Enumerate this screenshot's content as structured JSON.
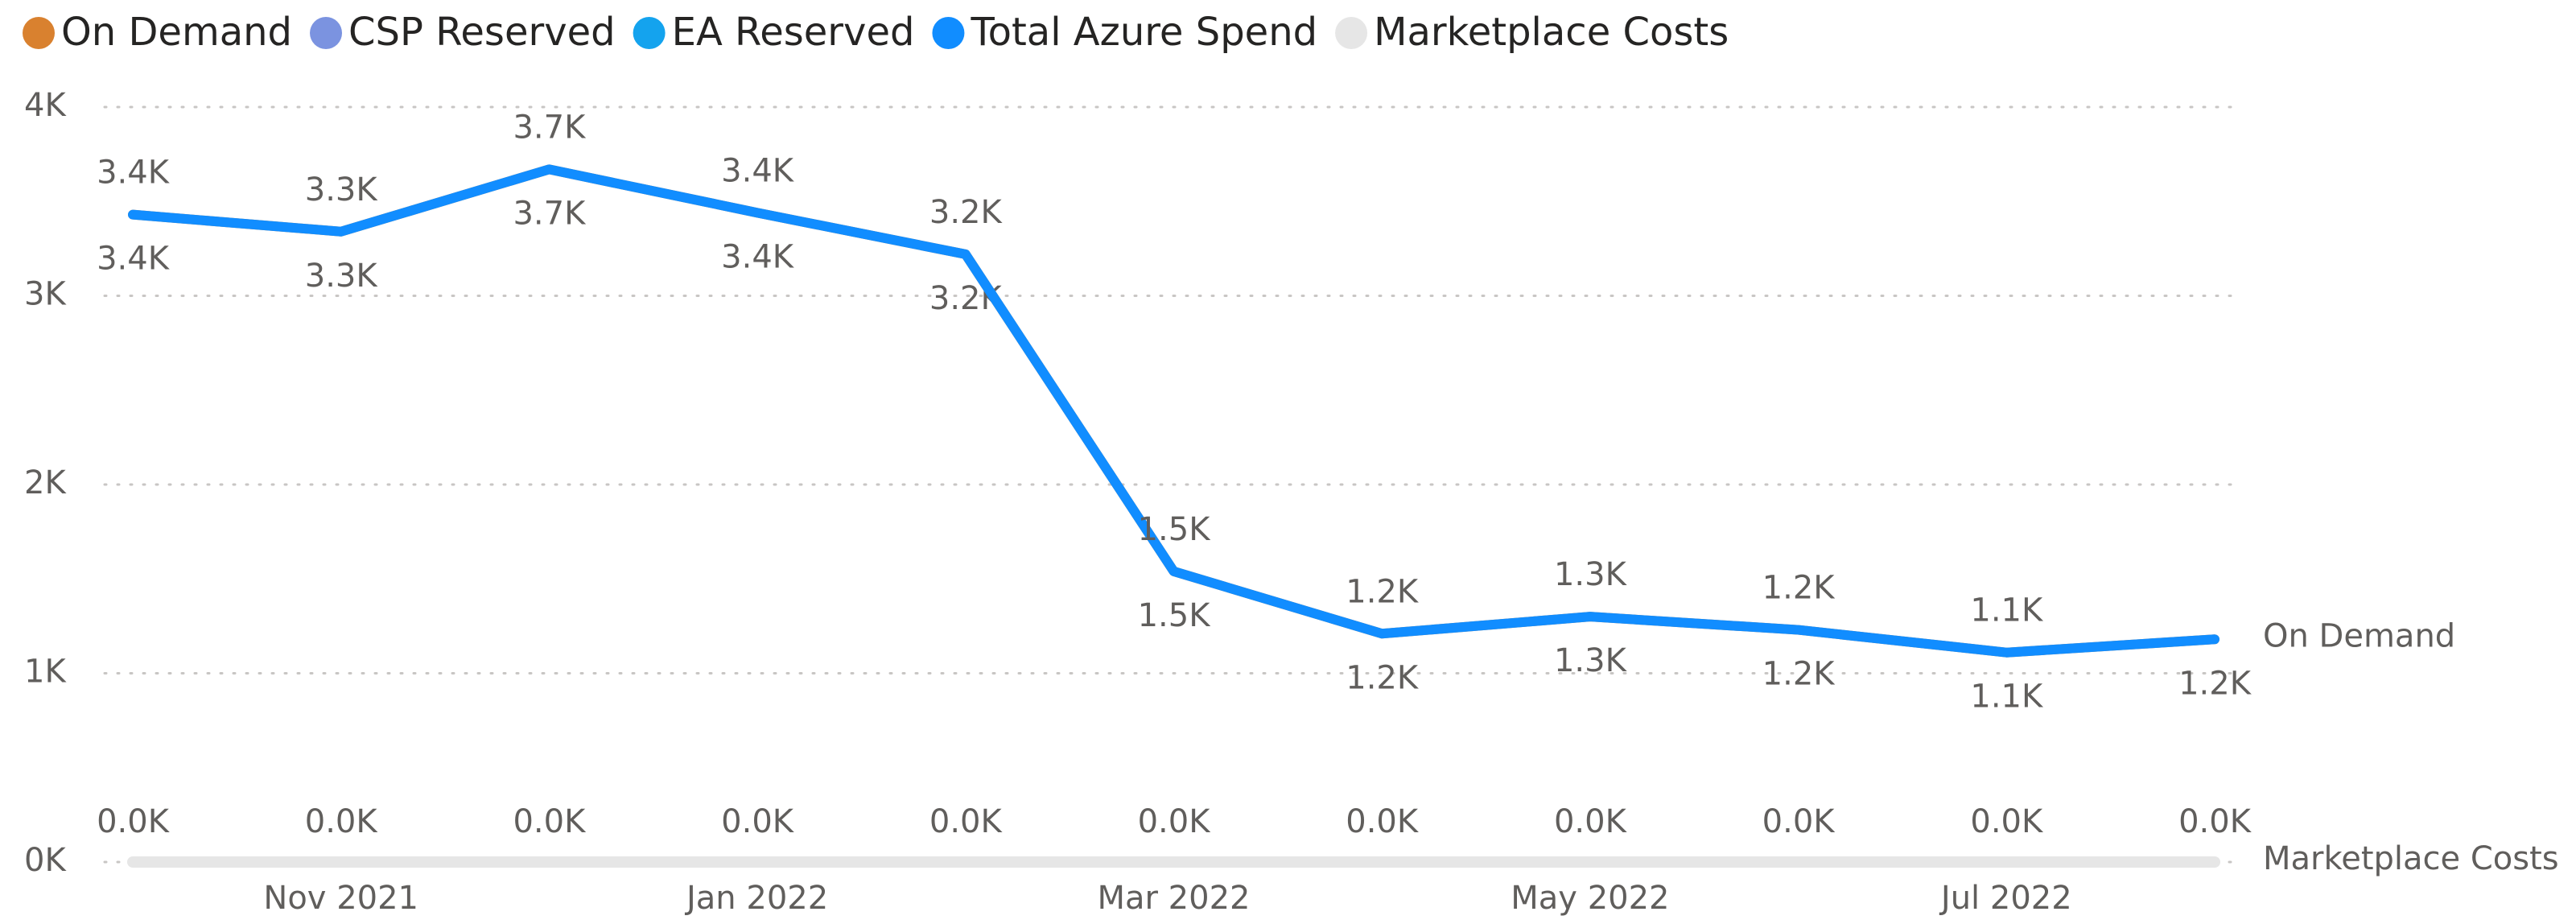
{
  "chart_data": {
    "type": "line",
    "categories": [
      null,
      "Nov 2021",
      null,
      "Jan 2022",
      null,
      "Mar 2022",
      null,
      "May 2022",
      null,
      "Jul 2022",
      null
    ],
    "series": [
      {
        "name": "On Demand",
        "color": "#d9812f",
        "values": [
          3430,
          3340,
          3670,
          3440,
          3220,
          1540,
          1210,
          1300,
          1230,
          1110,
          1180
        ],
        "value_labels": [
          "3.4K",
          "3.3K",
          "3.7K",
          "3.4K",
          "3.2K",
          "1.5K",
          "1.2K",
          "1.3K",
          "1.2K",
          "1.1K",
          "1.2K"
        ]
      },
      {
        "name": "CSP Reserved",
        "color": "#7b93e0"
      },
      {
        "name": "EA Reserved",
        "color": "#14a3ee"
      },
      {
        "name": "Total Azure Spend",
        "color": "#118dff",
        "values": [
          3430,
          3340,
          3670,
          3440,
          3220,
          1540,
          1210,
          1300,
          1230,
          1110,
          1180
        ],
        "value_labels": [
          "3.4K",
          "3.3K",
          "3.7K",
          "3.4K",
          "3.2K",
          "1.5K",
          "1.2K",
          "1.3K",
          "1.2K",
          "1.1K",
          null
        ]
      },
      {
        "name": "Marketplace Costs",
        "color": "#e6e6e6",
        "values": [
          0,
          0,
          0,
          0,
          0,
          0,
          0,
          0,
          0,
          0,
          0
        ],
        "value_labels": [
          "0.0K",
          "0.0K",
          "0.0K",
          "0.0K",
          "0.0K",
          "0.0K",
          "0.0K",
          "0.0K",
          "0.0K",
          "0.0K",
          "0.0K"
        ]
      }
    ],
    "ylim": [
      0,
      4000
    ],
    "yticks": [
      {
        "value": 0,
        "label": "0K"
      },
      {
        "value": 1000,
        "label": "1K"
      },
      {
        "value": 2000,
        "label": "2K"
      },
      {
        "value": 3000,
        "label": "3K"
      },
      {
        "value": 4000,
        "label": "4K"
      }
    ],
    "grid": true,
    "legend": "top-left"
  }
}
